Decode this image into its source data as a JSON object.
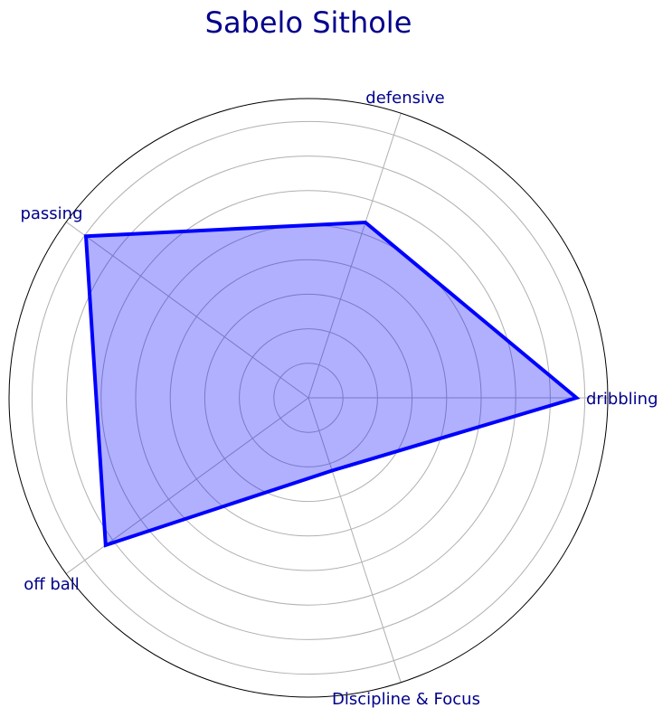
{
  "chart_data": {
    "type": "radar",
    "title": "Sabelo Sithole",
    "categories": [
      "dribbling",
      "defensive",
      "passing",
      "off ball",
      "Discipline & Focus"
    ],
    "series": [
      {
        "values": [
          77,
          53,
          79,
          72,
          22
        ]
      }
    ],
    "rlim": [
      0,
      86
    ],
    "rings": 8,
    "grid": true,
    "colors": {
      "line": "#0000ff",
      "fill": "#0000ff",
      "fill_opacity": 0.31,
      "text": "#00008b",
      "grid": "#b0b0b0"
    }
  }
}
